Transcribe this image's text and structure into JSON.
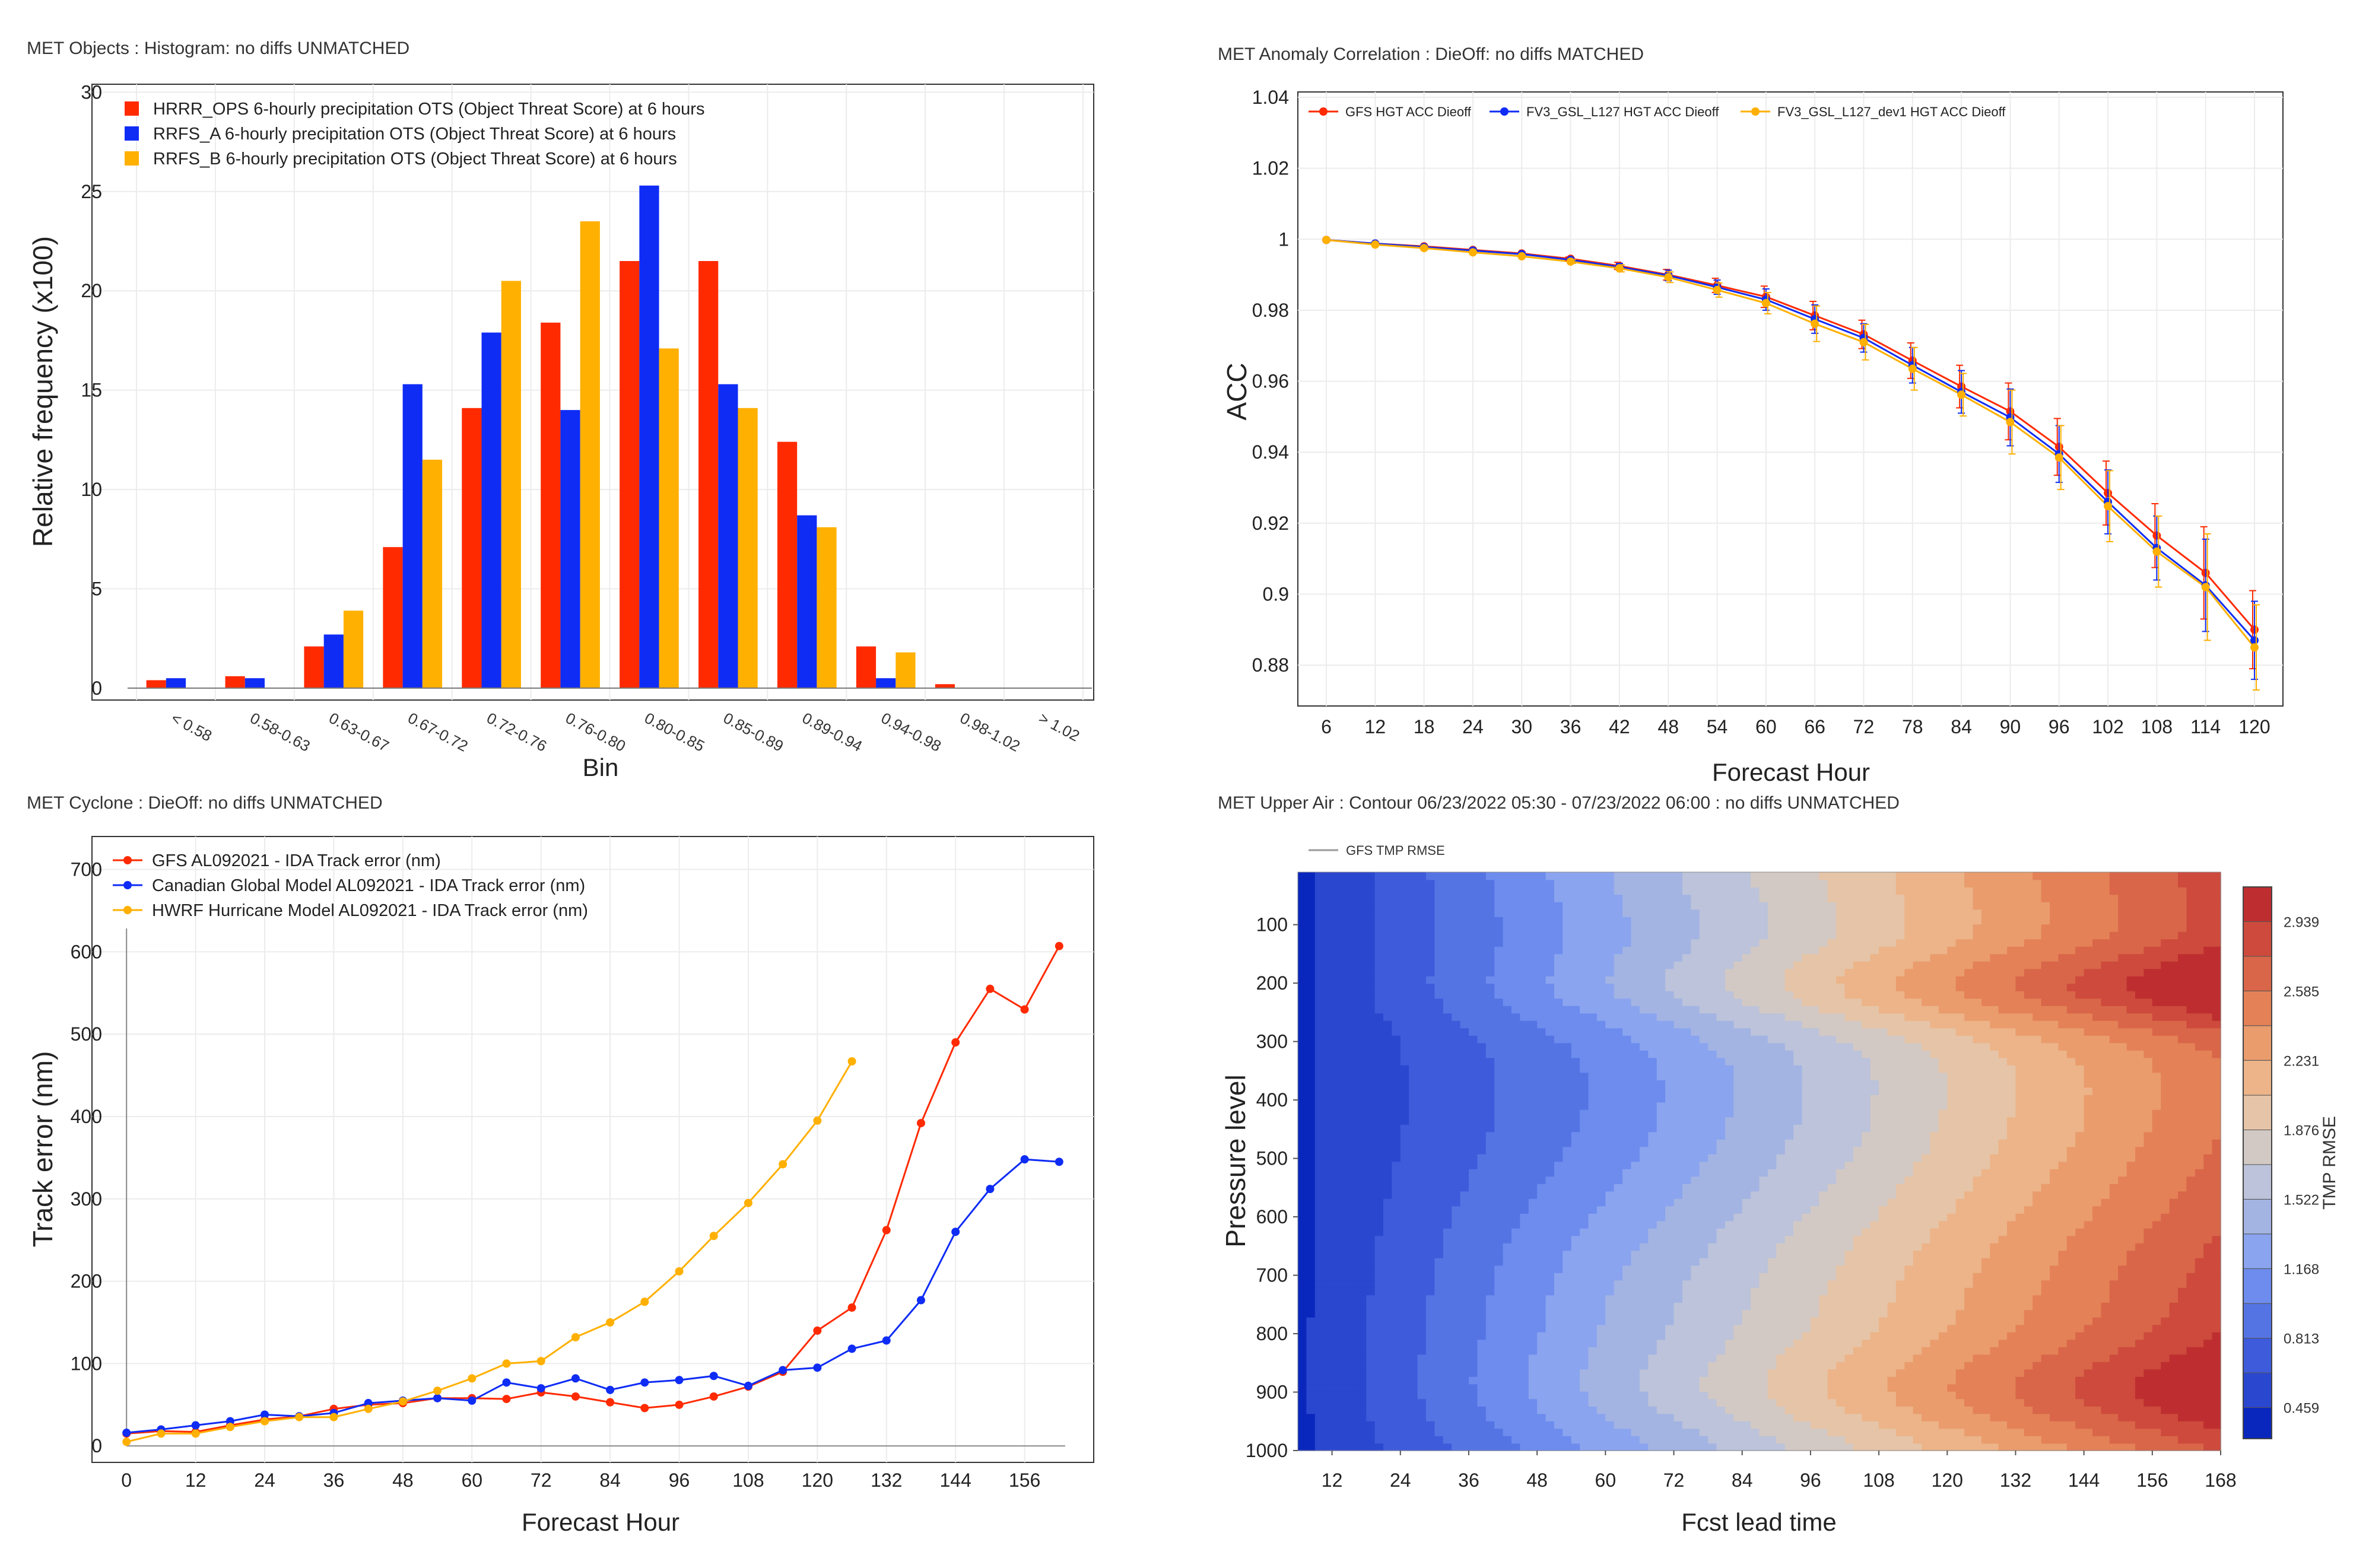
{
  "colors": {
    "red": "#ff2a00",
    "blue": "#0f2cf5",
    "orange": "#ffb000",
    "grid": "#ececec",
    "axis": "#333333",
    "plot_border": "#333333",
    "background": "#ffffff"
  },
  "chart_data": [
    {
      "id": "objects",
      "type": "bar",
      "title": "MET Objects : Histogram: no diffs UNMATCHED",
      "xlabel": "Bin",
      "ylabel": "Relative frequency (x100)",
      "ylim": [
        -0.6,
        30.4
      ],
      "yticks": [
        0,
        5,
        10,
        15,
        20,
        25,
        30
      ],
      "grid": true,
      "legend_position": "top-left",
      "categories": [
        "< 0.58",
        "0.58-0.63",
        "0.63-0.67",
        "0.67-0.72",
        "0.72-0.76",
        "0.76-0.80",
        "0.80-0.85",
        "0.85-0.89",
        "0.89-0.94",
        "0.94-0.98",
        "0.98-1.02",
        "> 1.02"
      ],
      "series": [
        {
          "name": "HRRR_OPS 6-hourly precipitation OTS (Object Threat Score) at 6 hours",
          "color": "#ff2a00",
          "values": [
            0.4,
            0.6,
            2.1,
            7.1,
            14.1,
            18.4,
            21.5,
            21.5,
            12.4,
            2.1,
            0.2,
            0
          ]
        },
        {
          "name": "RRFS_A 6-hourly precipitation OTS (Object Threat Score) at 6 hours",
          "color": "#0f2cf5",
          "values": [
            0.5,
            0.5,
            2.7,
            15.3,
            17.9,
            14.0,
            25.3,
            15.3,
            8.7,
            0.5,
            0,
            0
          ]
        },
        {
          "name": "RRFS_B 6-hourly precipitation OTS (Object Threat Score) at 6 hours",
          "color": "#ffb000",
          "values": [
            0,
            0,
            3.9,
            11.5,
            20.5,
            23.5,
            17.1,
            14.1,
            8.1,
            1.8,
            0,
            0
          ]
        }
      ]
    },
    {
      "id": "anomaly",
      "type": "line",
      "title": "MET Anomaly Correlation : DieOff: no diffs MATCHED",
      "xlabel": "Forecast Hour",
      "ylabel": "ACC",
      "xlim": [
        2.5,
        123.5
      ],
      "ylim": [
        0.8685,
        1.0415
      ],
      "xticks": [
        6,
        12,
        18,
        24,
        30,
        36,
        42,
        48,
        54,
        60,
        66,
        72,
        78,
        84,
        90,
        96,
        102,
        108,
        114,
        120
      ],
      "yticks": [
        0.88,
        0.9,
        0.92,
        0.94,
        0.96,
        0.98,
        1,
        1.02,
        1.04
      ],
      "grid": true,
      "legend_position": "top-left",
      "x": [
        6,
        12,
        18,
        24,
        30,
        36,
        42,
        48,
        54,
        60,
        66,
        72,
        78,
        84,
        90,
        96,
        102,
        108,
        114,
        120
      ],
      "series": [
        {
          "name": "GFS HGT ACC Dieoff",
          "color": "#ff2a00",
          "values": [
            0.9998,
            0.9988,
            0.998,
            0.997,
            0.996,
            0.9945,
            0.9925,
            0.99,
            0.987,
            0.9838,
            0.9785,
            0.9732,
            0.9658,
            0.9585,
            0.9515,
            0.9415,
            0.9285,
            0.9165,
            0.906,
            0.89
          ],
          "errors": [
            0,
            0,
            0,
            0,
            0,
            0.0005,
            0.001,
            0.0015,
            0.002,
            0.003,
            0.004,
            0.004,
            0.005,
            0.006,
            0.008,
            0.008,
            0.009,
            0.009,
            0.013,
            0.011
          ]
        },
        {
          "name": "FV3_GSL_L127 HGT ACC Dieoff",
          "color": "#0f2cf5",
          "values": [
            0.9998,
            0.9988,
            0.9978,
            0.9968,
            0.9958,
            0.9942,
            0.9922,
            0.9898,
            0.9865,
            0.983,
            0.9775,
            0.9722,
            0.9645,
            0.957,
            0.9498,
            0.9395,
            0.926,
            0.913,
            0.9025,
            0.887
          ],
          "errors": [
            0,
            0,
            0,
            0,
            0,
            0.0005,
            0.001,
            0.0015,
            0.002,
            0.003,
            0.004,
            0.004,
            0.005,
            0.006,
            0.008,
            0.008,
            0.009,
            0.009,
            0.013,
            0.011
          ]
        },
        {
          "name": "FV3_GSL_L127_dev1 HGT ACC Dieoff",
          "color": "#ffb000",
          "values": [
            0.9998,
            0.9985,
            0.9975,
            0.9963,
            0.9952,
            0.9937,
            0.9918,
            0.9893,
            0.9857,
            0.982,
            0.9762,
            0.971,
            0.9635,
            0.9562,
            0.9485,
            0.9385,
            0.9248,
            0.912,
            0.902,
            0.885
          ],
          "errors": [
            0,
            0,
            0,
            0,
            0,
            0.0005,
            0.001,
            0.0015,
            0.002,
            0.003,
            0.005,
            0.005,
            0.006,
            0.006,
            0.009,
            0.009,
            0.01,
            0.01,
            0.015,
            0.012
          ]
        }
      ]
    },
    {
      "id": "cyclone",
      "type": "line",
      "title": "MET Cyclone : DieOff: no diffs UNMATCHED",
      "xlabel": "Forecast Hour",
      "ylabel": "Track error (nm)",
      "xlim": [
        -6,
        168
      ],
      "ylim": [
        -20,
        740
      ],
      "xticks": [
        0,
        12,
        24,
        36,
        48,
        60,
        72,
        84,
        96,
        108,
        120,
        132,
        144,
        156
      ],
      "yticks": [
        0,
        100,
        200,
        300,
        400,
        500,
        600,
        700
      ],
      "grid": true,
      "legend_position": "top-left",
      "series": [
        {
          "name": "GFS AL092021 - IDA Track error (nm)",
          "color": "#ff2a00",
          "x": [
            0,
            6,
            12,
            18,
            24,
            30,
            36,
            42,
            48,
            54,
            60,
            66,
            72,
            78,
            84,
            90,
            96,
            102,
            108,
            114,
            120,
            126,
            132,
            138,
            144,
            150,
            156,
            162
          ],
          "values": [
            15,
            18,
            17,
            25,
            32,
            36,
            45,
            50,
            52,
            58,
            58,
            57,
            65,
            60,
            53,
            46,
            50,
            60,
            72,
            90,
            140,
            168,
            262,
            392,
            490,
            555,
            530,
            607
          ]
        },
        {
          "name": "Canadian Global Model AL092021 - IDA Track error (nm)",
          "color": "#0f2cf5",
          "x": [
            0,
            6,
            12,
            18,
            24,
            30,
            36,
            42,
            48,
            54,
            60,
            66,
            72,
            78,
            84,
            90,
            96,
            102,
            108,
            114,
            120,
            126,
            132,
            138,
            144,
            150,
            156,
            162
          ],
          "values": [
            16,
            20,
            25,
            30,
            38,
            36,
            40,
            52,
            55,
            58,
            55,
            77,
            70,
            82,
            68,
            77,
            80,
            85,
            73,
            92,
            95,
            118,
            128,
            177,
            260,
            312,
            348,
            345
          ]
        },
        {
          "name": "HWRF Hurricane Model AL092021 - IDA Track error (nm)",
          "color": "#ffb000",
          "x": [
            0,
            6,
            12,
            18,
            24,
            30,
            36,
            42,
            48,
            54,
            60,
            66,
            72,
            78,
            84,
            90,
            96,
            102,
            108,
            114,
            120,
            126
          ],
          "values": [
            5,
            15,
            15,
            23,
            30,
            35,
            35,
            45,
            54,
            67,
            82,
            100,
            103,
            132,
            150,
            175,
            212,
            255,
            295,
            342,
            395,
            467
          ]
        }
      ]
    },
    {
      "id": "upperair",
      "type": "heatmap",
      "title": "MET Upper Air : Contour 06/23/2022 05:30 - 07/23/2022 06:00 : no diffs UNMATCHED",
      "xlabel": "Fcst lead time",
      "ylabel": "Pressure level",
      "xlim": [
        6,
        168
      ],
      "ylim": [
        1000,
        10
      ],
      "xticks": [
        12,
        24,
        36,
        48,
        60,
        72,
        84,
        96,
        108,
        120,
        132,
        144,
        156,
        168
      ],
      "yticks": [
        100,
        200,
        300,
        400,
        500,
        600,
        700,
        800,
        900,
        1000
      ],
      "legend": "GFS TMP RMSE",
      "legend_position": "top-left",
      "colorbar_label": "TMP RMSE",
      "colorbar_ticks": [
        0.459,
        0.813,
        1.168,
        1.522,
        1.876,
        2.231,
        2.585,
        2.939
      ],
      "levels": [
        0.3,
        0.459,
        0.636,
        0.813,
        0.99,
        1.168,
        1.345,
        1.522,
        1.699,
        1.876,
        2.053,
        2.231,
        2.408,
        2.585,
        2.762,
        2.939,
        3.116
      ],
      "level_colors": [
        "#0a27bd",
        "#2a47cf",
        "#3e5bdb",
        "#5574e4",
        "#6d8cee",
        "#8aa4ef",
        "#a3b4e3",
        "#bcc3da",
        "#d3c9c4",
        "#e6c4a7",
        "#ecb488",
        "#ea9c6d",
        "#e48157",
        "#d96649",
        "#cd4a3c",
        "#be2e30"
      ]
    }
  ]
}
